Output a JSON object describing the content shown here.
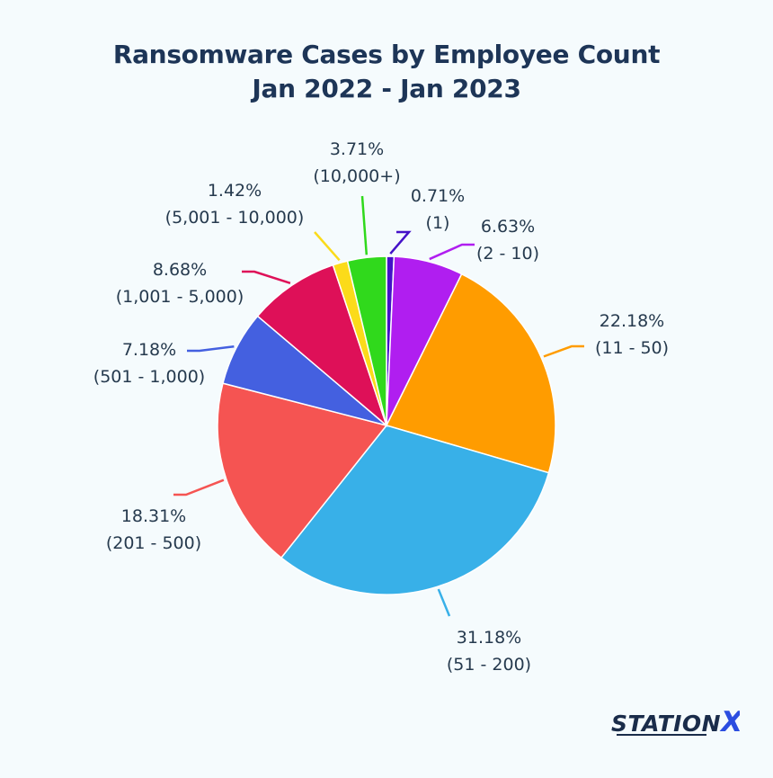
{
  "title_line1": "Ransomware Cases by Employee Count",
  "title_line2": "Jan 2022 - Jan 2023",
  "brand": {
    "left": "STATION",
    "right": "X",
    "colors": {
      "text": "#1a2c4a",
      "accent": "#2b4de0"
    }
  },
  "chart_data": {
    "type": "pie",
    "title": "Ransomware Cases by Employee Count Jan 2022 - Jan 2023",
    "start": "12 o'clock, clockwise",
    "slices": [
      {
        "pct_label": "0.71%",
        "category": "(1)",
        "value": 0.71,
        "color": "#4411c8"
      },
      {
        "pct_label": "6.63%",
        "category": "(2 - 10)",
        "value": 6.63,
        "color": "#b01ef0"
      },
      {
        "pct_label": "22.18%",
        "category": "(11 - 50)",
        "value": 22.18,
        "color": "#ff9c00"
      },
      {
        "pct_label": "31.18%",
        "category": "(51 - 200)",
        "value": 31.18,
        "color": "#38b0e8"
      },
      {
        "pct_label": "18.31%",
        "category": "(201 - 500)",
        "value": 18.31,
        "color": "#f55452"
      },
      {
        "pct_label": "7.18%",
        "category": "(501 - 1,000)",
        "value": 7.18,
        "color": "#4460e0"
      },
      {
        "pct_label": "8.68%",
        "category": "(1,001 - 5,000)",
        "value": 8.68,
        "color": "#de1058"
      },
      {
        "pct_label": "1.42%",
        "category": "(5,001 - 10,000)",
        "value": 1.42,
        "color": "#fbdb1a"
      },
      {
        "pct_label": "3.71%",
        "category": "(10,000+)",
        "value": 3.71,
        "color": "#30d91c"
      }
    ]
  }
}
